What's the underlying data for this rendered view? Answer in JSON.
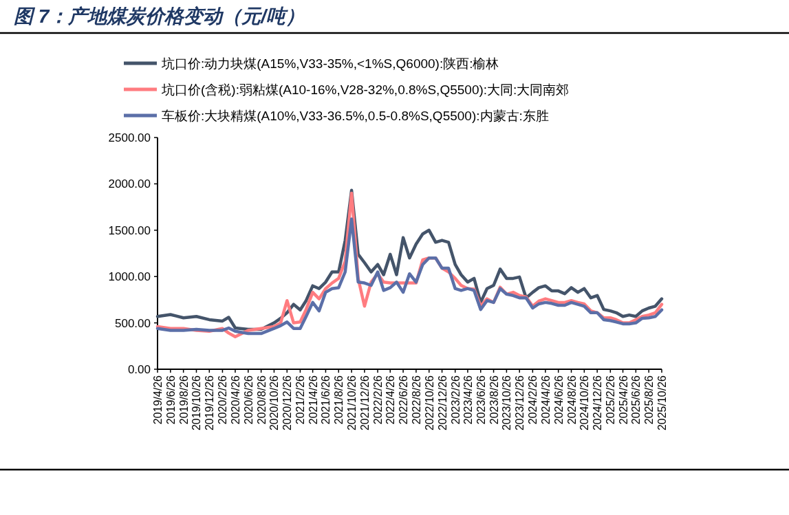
{
  "chart_data": {
    "type": "line",
    "title": "图 7：产地煤炭价格变动（元/吨）",
    "ylim": [
      0,
      2500
    ],
    "yticks": [
      {
        "value": 0,
        "label": "0.00"
      },
      {
        "value": 500,
        "label": "500.00"
      },
      {
        "value": 1000,
        "label": "1000.00"
      },
      {
        "value": 1500,
        "label": "1500.00"
      },
      {
        "value": 2000,
        "label": "2000.00"
      },
      {
        "value": 2500,
        "label": "2500.00"
      }
    ],
    "xlim": [
      "2019-04-26",
      "2025-10-26"
    ],
    "xticks": [
      {
        "value": "2019-04-26",
        "label": "2019/4/26"
      },
      {
        "value": "2019-06-26",
        "label": "2019/6/26"
      },
      {
        "value": "2019-08-26",
        "label": "2019/8/26"
      },
      {
        "value": "2019-10-26",
        "label": "2019/10/26"
      },
      {
        "value": "2019-12-26",
        "label": "2019/12/26"
      },
      {
        "value": "2020-02-26",
        "label": "2020/2/26"
      },
      {
        "value": "2020-04-26",
        "label": "2020/4/26"
      },
      {
        "value": "2020-06-26",
        "label": "2020/6/26"
      },
      {
        "value": "2020-08-26",
        "label": "2020/8/26"
      },
      {
        "value": "2020-10-26",
        "label": "2020/10/26"
      },
      {
        "value": "2020-12-26",
        "label": "2020/12/26"
      },
      {
        "value": "2021-02-26",
        "label": "2021/2/26"
      },
      {
        "value": "2021-04-26",
        "label": "2021/4/26"
      },
      {
        "value": "2021-06-26",
        "label": "2021/6/26"
      },
      {
        "value": "2021-08-26",
        "label": "2021/8/26"
      },
      {
        "value": "2021-10-26",
        "label": "2021/10/26"
      },
      {
        "value": "2021-12-26",
        "label": "2021/12/26"
      },
      {
        "value": "2022-02-26",
        "label": "2022/2/26"
      },
      {
        "value": "2022-04-26",
        "label": "2022/4/26"
      },
      {
        "value": "2022-06-26",
        "label": "2022/6/26"
      },
      {
        "value": "2022-08-26",
        "label": "2022/8/26"
      },
      {
        "value": "2022-10-26",
        "label": "2022/10/26"
      },
      {
        "value": "2022-12-26",
        "label": "2022/12/26"
      },
      {
        "value": "2023-02-26",
        "label": "2023/2/26"
      },
      {
        "value": "2023-04-26",
        "label": "2023/4/26"
      },
      {
        "value": "2023-06-26",
        "label": "2023/6/26"
      },
      {
        "value": "2023-08-26",
        "label": "2023/8/26"
      },
      {
        "value": "2023-10-26",
        "label": "2023/10/26"
      },
      {
        "value": "2023-12-26",
        "label": "2023/12/26"
      },
      {
        "value": "2024-02-26",
        "label": "2024/2/26"
      },
      {
        "value": "2024-04-26",
        "label": "2024/4/26"
      },
      {
        "value": "2024-06-26",
        "label": "2024/6/26"
      },
      {
        "value": "2024-08-26",
        "label": "2024/8/26"
      },
      {
        "value": "2024-10-26",
        "label": "2024/10/26"
      },
      {
        "value": "2024-12-26",
        "label": "2024/12/26"
      },
      {
        "value": "2025-02-26",
        "label": "2025/2/26"
      },
      {
        "value": "2025-04-26",
        "label": "2025/4/26"
      },
      {
        "value": "2025-06-26",
        "label": "2025/6/26"
      },
      {
        "value": "2025-08-26",
        "label": "2025/8/26"
      },
      {
        "value": "2025-10-26",
        "label": "2025/10/26"
      }
    ],
    "legend": "top",
    "grid": false,
    "marker": "none",
    "line_style": "solid",
    "x": [
      "2019-04-26",
      "2019-06-26",
      "2019-08-26",
      "2019-10-26",
      "2019-12-26",
      "2020-02-26",
      "2020-03-26",
      "2020-04-26",
      "2020-06-26",
      "2020-08-26",
      "2020-10-26",
      "2020-11-26",
      "2020-12-26",
      "2021-01-26",
      "2021-02-26",
      "2021-03-26",
      "2021-04-26",
      "2021-05-26",
      "2021-06-26",
      "2021-07-26",
      "2021-08-26",
      "2021-09-26",
      "2021-10-26",
      "2021-11-26",
      "2021-12-26",
      "2022-01-26",
      "2022-02-26",
      "2022-03-26",
      "2022-04-26",
      "2022-05-26",
      "2022-06-26",
      "2022-07-26",
      "2022-08-26",
      "2022-09-26",
      "2022-10-26",
      "2022-11-26",
      "2022-12-26",
      "2023-01-26",
      "2023-02-26",
      "2023-03-26",
      "2023-04-26",
      "2023-05-26",
      "2023-06-26",
      "2023-07-26",
      "2023-08-26",
      "2023-09-26",
      "2023-10-26",
      "2023-11-26",
      "2023-12-26",
      "2024-01-26",
      "2024-02-26",
      "2024-03-26",
      "2024-04-26",
      "2024-05-26",
      "2024-06-26",
      "2024-07-26",
      "2024-08-26",
      "2024-09-26",
      "2024-10-26",
      "2024-11-26",
      "2024-12-26",
      "2025-01-26",
      "2025-02-26",
      "2025-03-26",
      "2025-04-26",
      "2025-05-26",
      "2025-06-26",
      "2025-07-26",
      "2025-08-26",
      "2025-09-26",
      "2025-10-26"
    ],
    "series": [
      {
        "name": "坑口价:动力块煤(A15%,V33-35%,<1%S,Q6000):陕西:榆林",
        "color": "#44546a",
        "values": [
          570,
          590,
          555,
          570,
          535,
          520,
          560,
          445,
          430,
          430,
          500,
          550,
          610,
          700,
          640,
          740,
          900,
          870,
          940,
          1050,
          1050,
          1390,
          1930,
          1240,
          1150,
          1050,
          1130,
          1020,
          1240,
          1020,
          1420,
          1200,
          1350,
          1460,
          1500,
          1370,
          1390,
          1370,
          1130,
          1020,
          940,
          980,
          720,
          870,
          905,
          1080,
          980,
          980,
          995,
          770,
          830,
          880,
          900,
          845,
          845,
          815,
          880,
          830,
          870,
          770,
          795,
          645,
          630,
          610,
          570,
          585,
          570,
          630,
          660,
          680,
          760
        ]
      },
      {
        "name": "坑口价(含税):弱粘煤(A10-16%,V28-32%,0.8%S,Q5500):大同:大同南郊",
        "color": "#ff7c80",
        "values": [
          460,
          440,
          440,
          420,
          410,
          440,
          390,
          350,
          420,
          440,
          460,
          500,
          740,
          500,
          510,
          645,
          830,
          760,
          870,
          930,
          980,
          1165,
          1900,
          980,
          680,
          940,
          1030,
          940,
          930,
          930,
          930,
          930,
          930,
          1180,
          1200,
          1200,
          1090,
          1050,
          980,
          905,
          870,
          865,
          680,
          760,
          720,
          885,
          810,
          830,
          795,
          780,
          680,
          735,
          760,
          740,
          720,
          720,
          740,
          720,
          705,
          630,
          610,
          555,
          555,
          535,
          500,
          500,
          535,
          570,
          585,
          610,
          700
        ]
      },
      {
        "name": "车板价:大块精煤(A10%,V33-36.5%,0.5-0.8%S,Q5500):内蒙古:东胜",
        "color": "#5b6fa8",
        "values": [
          440,
          420,
          420,
          430,
          420,
          420,
          445,
          410,
          385,
          385,
          440,
          470,
          510,
          440,
          440,
          570,
          720,
          630,
          830,
          870,
          880,
          1050,
          1620,
          940,
          930,
          905,
          1050,
          850,
          880,
          940,
          830,
          1030,
          940,
          1130,
          1200,
          1200,
          1090,
          1090,
          870,
          850,
          870,
          850,
          645,
          740,
          720,
          870,
          810,
          795,
          770,
          770,
          660,
          705,
          720,
          710,
          690,
          690,
          720,
          700,
          680,
          610,
          610,
          535,
          525,
          510,
          490,
          490,
          500,
          550,
          555,
          570,
          640
        ]
      }
    ]
  }
}
